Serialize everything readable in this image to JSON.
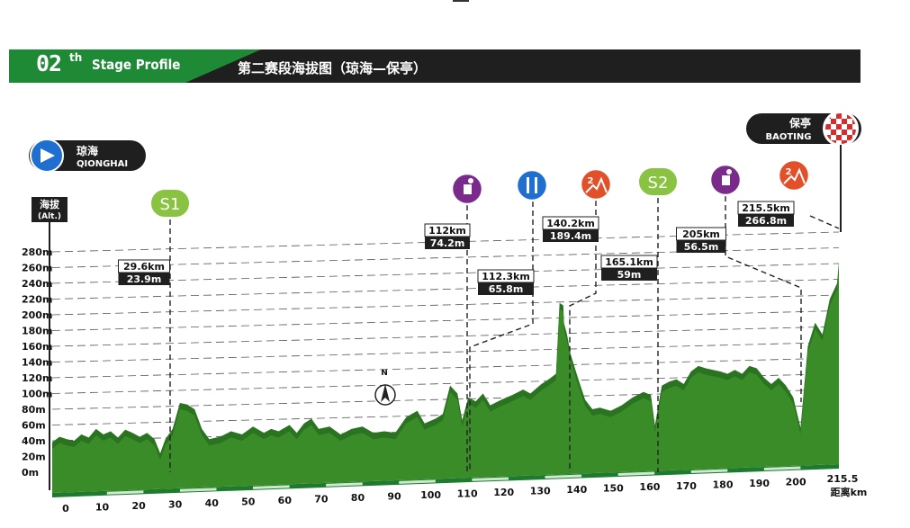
{
  "header": {
    "stage_number": "02",
    "stage_suffix": "th",
    "stage_label": "Stage Profile",
    "title_cn": "第二赛段海拔图（琼海—保亭）",
    "color_green": "#1f8a36",
    "color_dark": "#1f1f1f"
  },
  "start": {
    "cn": "琼海",
    "en": "QIONGHAI",
    "icon": "start-arrow-icon",
    "color": "#1e6fd0"
  },
  "finish": {
    "cn": "保亭",
    "en": "BAOTING",
    "icon": "checkered-flag-icon",
    "color": "#d92b2b"
  },
  "chart_data": {
    "type": "area",
    "ylabel_cn": "海拔",
    "ylabel_en": "(Alt.)",
    "xlabel": "距离km",
    "ylim": [
      0,
      280
    ],
    "yticks": [
      0,
      20,
      40,
      60,
      80,
      100,
      120,
      140,
      160,
      180,
      200,
      220,
      240,
      260,
      280
    ],
    "ytick_labels": [
      "0m",
      "20m",
      "40m",
      "60m",
      "80m",
      "100m",
      "120m",
      "140m",
      "160m",
      "180m",
      "200m",
      "220m",
      "240m",
      "260m",
      "280m"
    ],
    "xlim": [
      0,
      215.5
    ],
    "xticks": [
      0,
      10,
      20,
      30,
      40,
      50,
      60,
      70,
      80,
      90,
      100,
      110,
      120,
      130,
      140,
      150,
      160,
      170,
      180,
      190,
      200
    ],
    "xtick_labels": [
      "0",
      "10",
      "20",
      "30",
      "40",
      "50",
      "60",
      "70",
      "80",
      "90",
      "100",
      "110",
      "120",
      "130",
      "140",
      "150",
      "160",
      "170",
      "180",
      "190",
      "200"
    ],
    "xend_label": "215.5",
    "grid": true,
    "color": "#3a8c28",
    "profile": [
      [
        0,
        38
      ],
      [
        2,
        45
      ],
      [
        4,
        42
      ],
      [
        6,
        40
      ],
      [
        8,
        48
      ],
      [
        10,
        44
      ],
      [
        12,
        55
      ],
      [
        14,
        48
      ],
      [
        16,
        52
      ],
      [
        18,
        44
      ],
      [
        20,
        54
      ],
      [
        22,
        50
      ],
      [
        24,
        45
      ],
      [
        26,
        50
      ],
      [
        28,
        42
      ],
      [
        29.6,
        23.9
      ],
      [
        31,
        42
      ],
      [
        33,
        55
      ],
      [
        35,
        88
      ],
      [
        37,
        86
      ],
      [
        39,
        80
      ],
      [
        41,
        55
      ],
      [
        43,
        42
      ],
      [
        46,
        45
      ],
      [
        49,
        52
      ],
      [
        52,
        48
      ],
      [
        55,
        58
      ],
      [
        58,
        50
      ],
      [
        60,
        55
      ],
      [
        62,
        52
      ],
      [
        65,
        60
      ],
      [
        67,
        50
      ],
      [
        69,
        62
      ],
      [
        71,
        68
      ],
      [
        73,
        55
      ],
      [
        76,
        58
      ],
      [
        79,
        48
      ],
      [
        82,
        55
      ],
      [
        85,
        58
      ],
      [
        88,
        50
      ],
      [
        91,
        52
      ],
      [
        94,
        50
      ],
      [
        97,
        70
      ],
      [
        100,
        78
      ],
      [
        102,
        62
      ],
      [
        105,
        68
      ],
      [
        107,
        74
      ],
      [
        109,
        110
      ],
      [
        111,
        100
      ],
      [
        112,
        74.2
      ],
      [
        112.3,
        65.8
      ],
      [
        114,
        95
      ],
      [
        116,
        90
      ],
      [
        118,
        100
      ],
      [
        120,
        85
      ],
      [
        123,
        92
      ],
      [
        126,
        98
      ],
      [
        129,
        105
      ],
      [
        131,
        100
      ],
      [
        134,
        112
      ],
      [
        136,
        118
      ],
      [
        138,
        125
      ],
      [
        139,
        215
      ],
      [
        140,
        212
      ],
      [
        140.2,
        189.4
      ],
      [
        141,
        175
      ],
      [
        142,
        150
      ],
      [
        144,
        120
      ],
      [
        146,
        92
      ],
      [
        148,
        80
      ],
      [
        150,
        82
      ],
      [
        153,
        78
      ],
      [
        156,
        85
      ],
      [
        159,
        95
      ],
      [
        162,
        102
      ],
      [
        164,
        98
      ],
      [
        165.1,
        59
      ],
      [
        167,
        110
      ],
      [
        169,
        115
      ],
      [
        171,
        118
      ],
      [
        173,
        112
      ],
      [
        175,
        128
      ],
      [
        177,
        135
      ],
      [
        179,
        132
      ],
      [
        181,
        130
      ],
      [
        183,
        128
      ],
      [
        185,
        125
      ],
      [
        187,
        130
      ],
      [
        189,
        125
      ],
      [
        191,
        135
      ],
      [
        193,
        132
      ],
      [
        195,
        120
      ],
      [
        197,
        112
      ],
      [
        199,
        120
      ],
      [
        201,
        110
      ],
      [
        203,
        95
      ],
      [
        205,
        56.5
      ],
      [
        207,
        160
      ],
      [
        209,
        190
      ],
      [
        211,
        175
      ],
      [
        213,
        220
      ],
      [
        215,
        240
      ],
      [
        215.5,
        266.8
      ]
    ],
    "annotations": [
      {
        "km": 29.6,
        "alt": 23.9,
        "km_label": "29.6km",
        "alt_label": "23.9m",
        "icon": "S1",
        "icon_type": "sprint"
      },
      {
        "km": 112,
        "alt": 74.2,
        "km_label": "112km",
        "alt_label": "74.2m",
        "icon": "feed-zone-icon",
        "icon_type": "feed"
      },
      {
        "km": 112.3,
        "alt": 65.8,
        "km_label": "112.3km",
        "alt_label": "65.8m",
        "icon": "fork-knife-icon",
        "icon_type": "food"
      },
      {
        "km": 140.2,
        "alt": 189.4,
        "km_label": "140.2km",
        "alt_label": "189.4m",
        "icon": "category-2-climb-icon",
        "icon_type": "climb",
        "category": "2"
      },
      {
        "km": 165.1,
        "alt": 59,
        "km_label": "165.1km",
        "alt_label": "59m",
        "icon": "S2",
        "icon_type": "sprint"
      },
      {
        "km": 205,
        "alt": 56.5,
        "km_label": "205km",
        "alt_label": "56.5m",
        "icon": "feed-zone-icon",
        "icon_type": "feed"
      },
      {
        "km": 215.5,
        "alt": 266.8,
        "km_label": "215.5km",
        "alt_label": "266.8m",
        "icon": "category-2-climb-icon",
        "icon_type": "climb",
        "category": "2"
      }
    ],
    "compass": "N"
  }
}
